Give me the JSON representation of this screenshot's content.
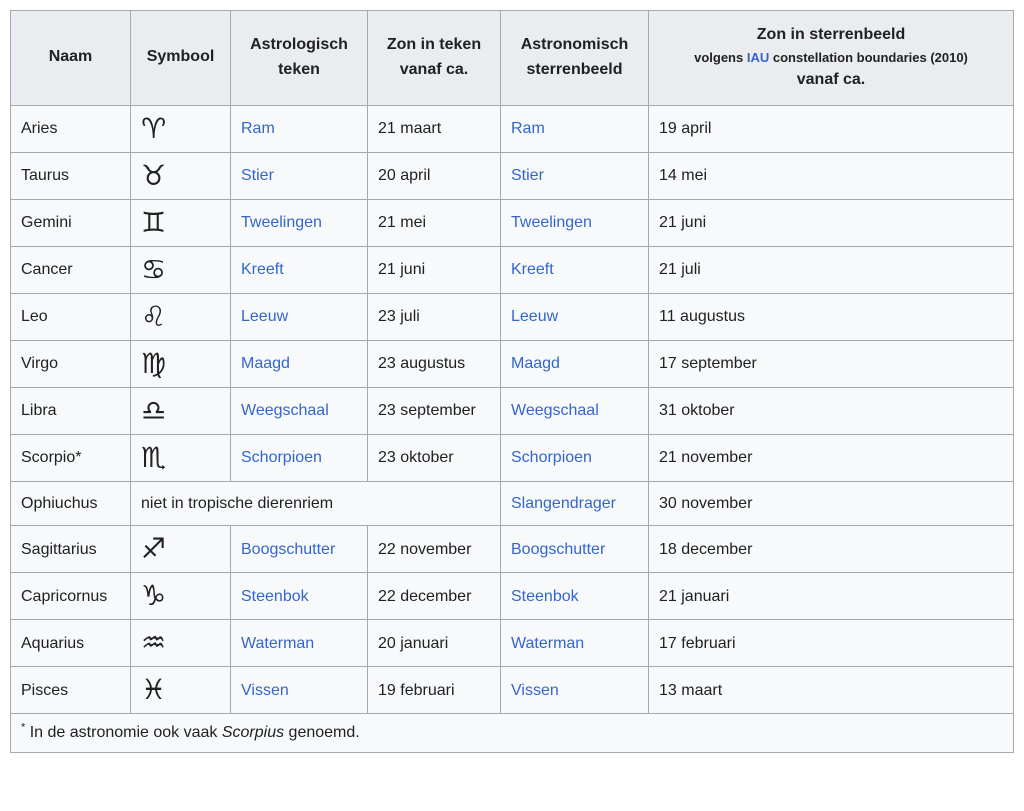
{
  "colors": {
    "link": "#3366cc",
    "header_bg": "#eaecf0",
    "row_bg": "#f8f9fa",
    "border": "#a2a9b1",
    "text": "#202122"
  },
  "table": {
    "headers": {
      "naam": "Naam",
      "symbool": "Symbool",
      "astrologisch_teken": "Astrologisch teken",
      "zon_in_teken": "Zon in teken vanaf ca.",
      "astronomisch_sterrenbeeld": "Astronomisch sterrenbeeld",
      "zon_in_sterrenbeeld": {
        "line1": "Zon in sterrenbeeld",
        "line2_prefix": "volgens ",
        "line2_link": "IAU",
        "line2_suffix": " constellation boundaries (2010)",
        "line3": "vanaf ca."
      }
    },
    "rows": [
      {
        "name": "Aries",
        "symbol": "♈",
        "sign": "Ram",
        "sun_in_sign": "21 maart",
        "constellation": "Ram",
        "sun_in_constellation": "19 april"
      },
      {
        "name": "Taurus",
        "symbol": "♉",
        "sign": "Stier",
        "sun_in_sign": "20 april",
        "constellation": "Stier",
        "sun_in_constellation": "14 mei"
      },
      {
        "name": "Gemini",
        "symbol": "♊",
        "sign": "Tweelingen",
        "sun_in_sign": "21 mei",
        "constellation": "Tweelingen",
        "sun_in_constellation": "21 juni"
      },
      {
        "name": "Cancer",
        "symbol": "♋",
        "sign": "Kreeft",
        "sun_in_sign": "21 juni",
        "constellation": "Kreeft",
        "sun_in_constellation": "21 juli"
      },
      {
        "name": "Leo",
        "symbol": "♌",
        "sign": "Leeuw",
        "sun_in_sign": "23 juli",
        "constellation": "Leeuw",
        "sun_in_constellation": "11 augustus"
      },
      {
        "name": "Virgo",
        "symbol": "♍",
        "sign": "Maagd",
        "sun_in_sign": "23 augustus",
        "constellation": "Maagd",
        "sun_in_constellation": "17 september"
      },
      {
        "name": "Libra",
        "symbol": "♎",
        "sign": "Weegschaal",
        "sun_in_sign": "23 september",
        "constellation": "Weegschaal",
        "sun_in_constellation": "31 oktober"
      },
      {
        "name": "Scorpio*",
        "symbol": "♏",
        "sign": "Schorpioen",
        "sun_in_sign": "23 oktober",
        "constellation": "Schorpioen",
        "sun_in_constellation": "21 november"
      },
      {
        "name": "Ophiuchus",
        "note": "niet in tropische dierenriem",
        "constellation": "Slangendrager",
        "sun_in_constellation": "30 november"
      },
      {
        "name": "Sagittarius",
        "symbol": "♐",
        "sign": "Boogschutter",
        "sun_in_sign": "22 november",
        "constellation": "Boogschutter",
        "sun_in_constellation": "18 december"
      },
      {
        "name": "Capricornus",
        "symbol": "♑",
        "sign": "Steenbok",
        "sun_in_sign": "22 december",
        "constellation": "Steenbok",
        "sun_in_constellation": "21 januari"
      },
      {
        "name": "Aquarius",
        "symbol": "♒",
        "sign": "Waterman",
        "sun_in_sign": "20 januari",
        "constellation": "Waterman",
        "sun_in_constellation": "17 februari"
      },
      {
        "name": "Pisces",
        "symbol": "♓",
        "sign": "Vissen",
        "sun_in_sign": "19 februari",
        "constellation": "Vissen",
        "sun_in_constellation": "13 maart"
      }
    ],
    "footnote": {
      "marker": "*",
      "text_before": "In de astronomie ook vaak ",
      "italic": "Scorpius",
      "text_after": " genoemd."
    }
  }
}
